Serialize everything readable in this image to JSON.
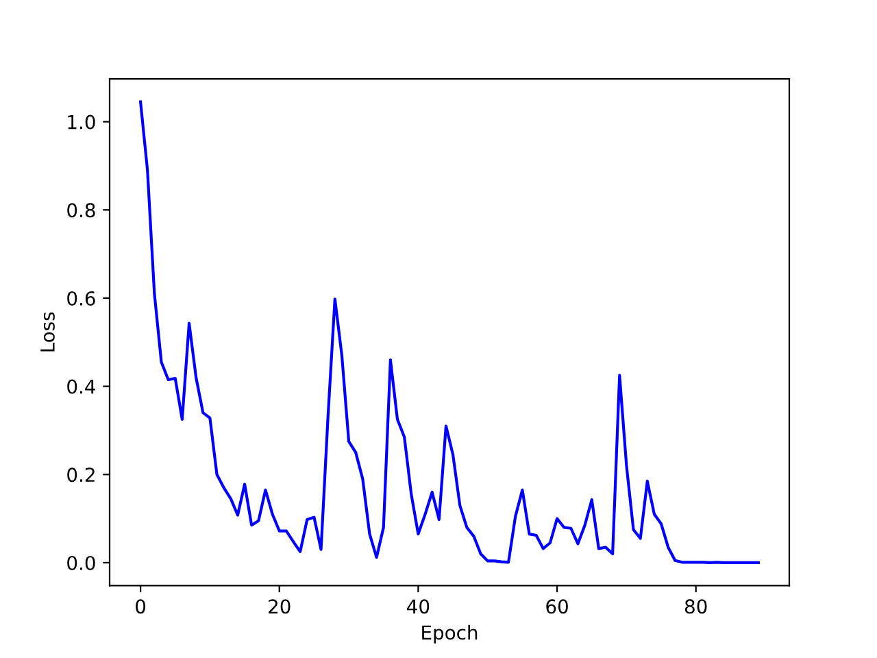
{
  "chart_data": {
    "type": "line",
    "xlabel": "Epoch",
    "ylabel": "Loss",
    "x": [
      0,
      1,
      2,
      3,
      4,
      5,
      6,
      7,
      8,
      9,
      10,
      11,
      12,
      13,
      14,
      15,
      16,
      17,
      18,
      19,
      20,
      21,
      22,
      23,
      24,
      25,
      26,
      27,
      28,
      29,
      30,
      31,
      32,
      33,
      34,
      35,
      36,
      37,
      38,
      39,
      40,
      41,
      42,
      43,
      44,
      45,
      46,
      47,
      48,
      49,
      50,
      51,
      52,
      53,
      54,
      55,
      56,
      57,
      58,
      59,
      60,
      61,
      62,
      63,
      64,
      65,
      66,
      67,
      68,
      69,
      70,
      71,
      72,
      73,
      74,
      75,
      76,
      77,
      78,
      79,
      80,
      81,
      82,
      83,
      84,
      85,
      86,
      87,
      88,
      89
    ],
    "series": [
      {
        "color": "#0000ff",
        "values": [
          1.045,
          0.89,
          0.61,
          0.455,
          0.415,
          0.418,
          0.325,
          0.543,
          0.42,
          0.34,
          0.328,
          0.2,
          0.17,
          0.145,
          0.108,
          0.178,
          0.085,
          0.095,
          0.165,
          0.11,
          0.072,
          0.072,
          0.048,
          0.025,
          0.098,
          0.103,
          0.03,
          0.33,
          0.598,
          0.47,
          0.275,
          0.25,
          0.19,
          0.065,
          0.012,
          0.08,
          0.46,
          0.325,
          0.285,
          0.155,
          0.065,
          0.11,
          0.16,
          0.098,
          0.31,
          0.245,
          0.13,
          0.08,
          0.06,
          0.02,
          0.004,
          0.004,
          0.002,
          0.001,
          0.105,
          0.165,
          0.065,
          0.062,
          0.032,
          0.045,
          0.1,
          0.08,
          0.078,
          0.043,
          0.085,
          0.143,
          0.032,
          0.035,
          0.02,
          0.425,
          0.22,
          0.075,
          0.055,
          0.185,
          0.11,
          0.088,
          0.035,
          0.005,
          0.001,
          0.001,
          0.001,
          0.001,
          0.0,
          0.001,
          0.0,
          0.0,
          0.0,
          0.0,
          0.0,
          0.0
        ]
      }
    ],
    "xlim": [
      -4.45,
      93.45
    ],
    "ylim": [
      -0.052,
      1.097
    ],
    "xticks": [
      0,
      20,
      40,
      60,
      80
    ],
    "yticks": [
      {
        "value": 0,
        "label": "0.0"
      },
      {
        "value": 0.2,
        "label": "0.2"
      },
      {
        "value": 0.4,
        "label": "0.4"
      },
      {
        "value": 0.6,
        "label": "0.6"
      },
      {
        "value": 0.8,
        "label": "0.8"
      },
      {
        "value": 1.0,
        "label": "1.0"
      }
    ],
    "grid": false,
    "legend": false
  }
}
